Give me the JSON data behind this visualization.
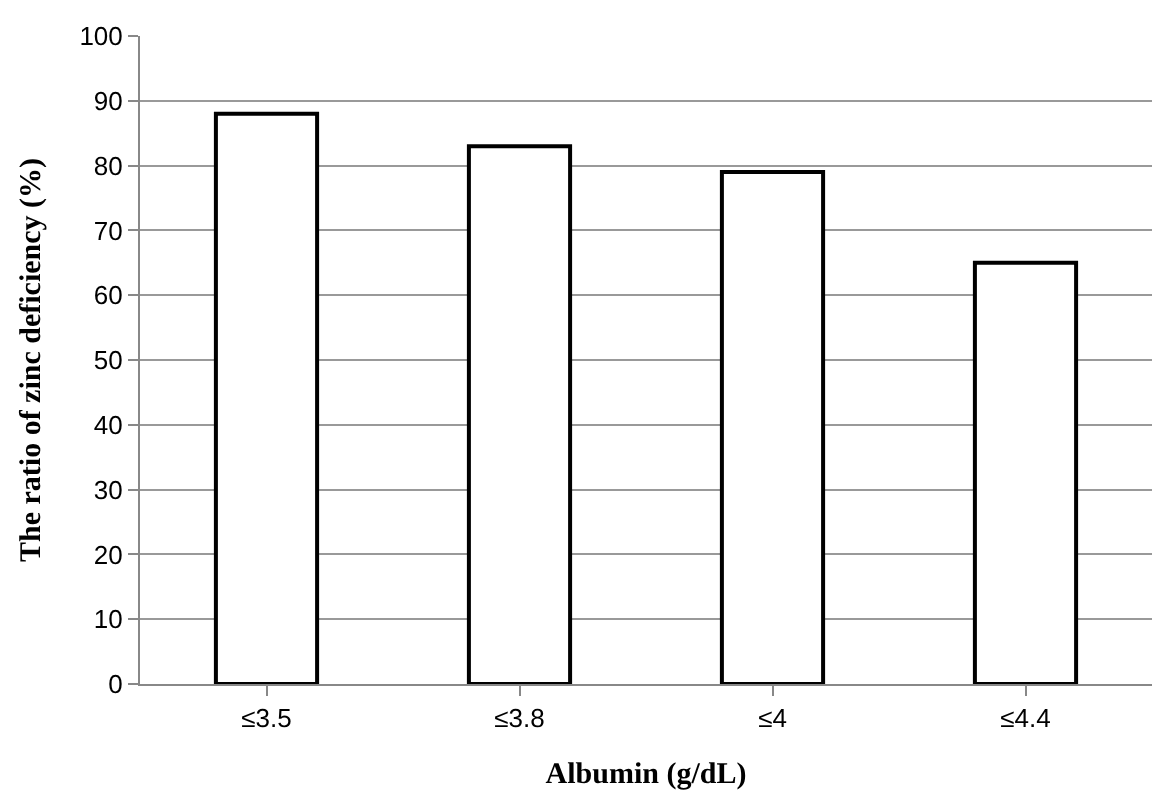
{
  "chart_data": {
    "type": "bar",
    "xlabel": "Albumin (g/dL)",
    "ylabel": "The ratio of zinc deficiency (%)",
    "categories": [
      "≤3.5",
      "≤3.8",
      "≤4",
      "≤4.4"
    ],
    "values": [
      88,
      83,
      79,
      65
    ],
    "color": "#ffffff",
    "ylim": [
      0,
      100
    ],
    "yticks": [
      0,
      10,
      20,
      30,
      40,
      50,
      60,
      70,
      80,
      90,
      100
    ],
    "grid": "y"
  }
}
